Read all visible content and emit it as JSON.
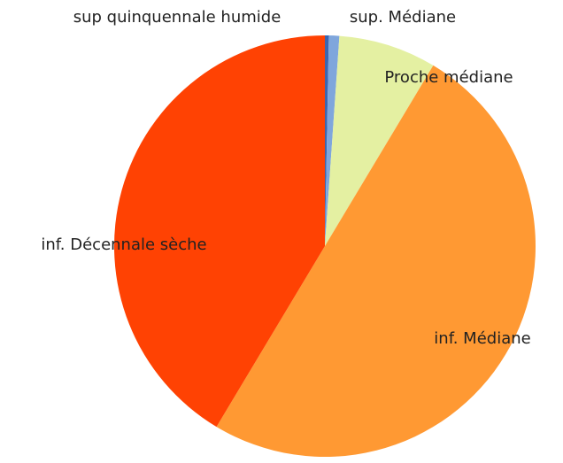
{
  "chart_data": {
    "type": "pie",
    "categories": [
      "sup quinquennale humide",
      "sup. Médiane",
      "Proche médiane",
      "inf. Médiane",
      "inf. Décennale sèche"
    ],
    "values": [
      0.3,
      0.8,
      7.5,
      50,
      41.4
    ],
    "colors": [
      "#3b66b0",
      "#7fa6dc",
      "#e4f0a2",
      "#ff9933",
      "#ff4203"
    ]
  }
}
